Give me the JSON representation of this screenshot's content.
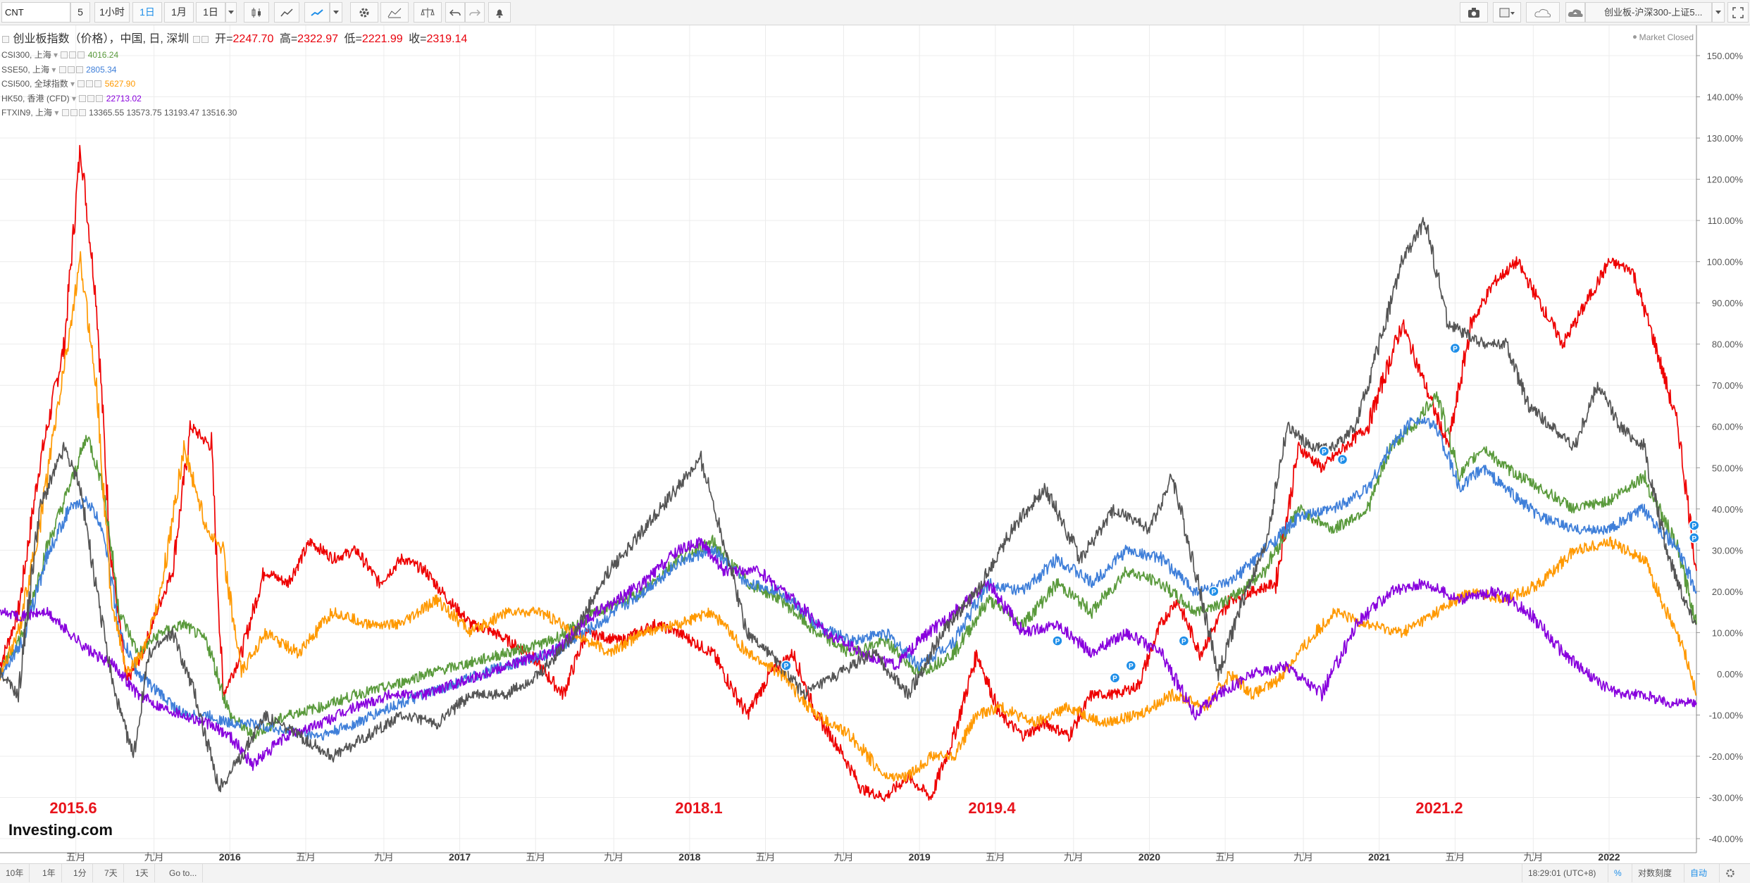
{
  "toolbar": {
    "symbol": "CNT",
    "interval_value": "5",
    "interval_1h": "1小时",
    "interval_1d": "1日",
    "interval_1m": "1月",
    "range_1d": "1日",
    "layout_name": "创业板-沪深300-上证5..."
  },
  "legend": {
    "main": {
      "name": "创业板指数（价格），中国, 日, 深圳",
      "open_label": "开=",
      "open": "2247.70",
      "high_label": "高=",
      "high": "2322.97",
      "low_label": "低=",
      "low": "2221.99",
      "close_label": "收=",
      "close": "2319.14"
    },
    "items": [
      {
        "name": "CSI300, 上海",
        "value": "4016.24",
        "color": "#5a9a3c"
      },
      {
        "name": "SSE50, 上海",
        "value": "2805.34",
        "color": "#3f7fd9"
      },
      {
        "name": "CSI500, 全球指数",
        "value": "5627.90",
        "color": "#ff9900"
      },
      {
        "name": "HK50, 香港 (CFD)",
        "value": "22713.02",
        "color": "#8800dd"
      },
      {
        "name": "FTXIN9, 上海",
        "value": "13365.55   13573.75   13193.47   13516.30",
        "color": "#555555"
      }
    ],
    "market_status": "Market Closed"
  },
  "watermark": "Investing.com",
  "annotations": [
    "2015.6",
    "2018.1",
    "2019.4",
    "2021.2"
  ],
  "bottom": {
    "ranges": [
      "10年",
      "1年",
      "1分",
      "7天",
      "1天"
    ],
    "goto": "Go to...",
    "clock": "18:29:01 (UTC+8)",
    "percent": "%",
    "log_scale": "对数刻度",
    "auto": "自动"
  },
  "chart_data": {
    "type": "line",
    "yunit": "%",
    "ylim": [
      -40,
      150
    ],
    "y_ticks": [
      "150.00%",
      "140.00%",
      "130.00%",
      "120.00%",
      "110.00%",
      "100.00%",
      "90.00%",
      "80.00%",
      "70.00%",
      "60.00%",
      "50.00%",
      "40.00%",
      "30.00%",
      "20.00%",
      "10.00%",
      "0.00%",
      "-10.00%",
      "-20.00%",
      "-30.00%",
      "-40.00%"
    ],
    "x_ticks": [
      "五月",
      "九月",
      "2016",
      "五月",
      "九月",
      "2017",
      "五月",
      "九月",
      "2018",
      "五月",
      "九月",
      "2019",
      "五月",
      "九月",
      "2020",
      "五月",
      "九月",
      "2021",
      "五月",
      "九月",
      "2022"
    ],
    "xlim": [
      2015.0,
      2022.38
    ],
    "x_tick_pos": [
      2015.33,
      2015.67,
      2016.0,
      2016.33,
      2016.67,
      2017.0,
      2017.33,
      2017.67,
      2018.0,
      2018.33,
      2018.67,
      2019.0,
      2019.33,
      2019.67,
      2020.0,
      2020.33,
      2020.67,
      2021.0,
      2021.33,
      2021.67,
      2022.0
    ],
    "series": [
      {
        "name": "创业板指数",
        "color": "#ee0000",
        "x": [
          2015.0,
          2015.08,
          2015.17,
          2015.28,
          2015.35,
          2015.42,
          2015.48,
          2015.55,
          2015.62,
          2015.68,
          2015.75,
          2015.83,
          2015.92,
          2015.97,
          2016.05,
          2016.15,
          2016.25,
          2016.35,
          2016.45,
          2016.55,
          2016.65,
          2016.75,
          2016.85,
          2016.95,
          2017.05,
          2017.15,
          2017.3,
          2017.45,
          2017.55,
          2017.7,
          2017.85,
          2017.95,
          2018.1,
          2018.25,
          2018.35,
          2018.45,
          2018.55,
          2018.65,
          2018.75,
          2018.85,
          2018.95,
          2019.05,
          2019.15,
          2019.25,
          2019.35,
          2019.45,
          2019.55,
          2019.65,
          2019.75,
          2019.85,
          2019.95,
          2020.05,
          2020.12,
          2020.22,
          2020.35,
          2020.45,
          2020.55,
          2020.65,
          2020.75,
          2020.85,
          2020.95,
          2021.1,
          2021.2,
          2021.3,
          2021.4,
          2021.5,
          2021.6,
          2021.7,
          2021.8,
          2021.9,
          2022.0,
          2022.1,
          2022.2,
          2022.3,
          2022.38
        ],
        "y": [
          2,
          15,
          50,
          80,
          128,
          90,
          30,
          -2,
          5,
          15,
          25,
          60,
          55,
          -5,
          5,
          25,
          22,
          32,
          28,
          30,
          22,
          28,
          25,
          18,
          12,
          10,
          5,
          -5,
          10,
          8,
          12,
          10,
          5,
          -10,
          0,
          5,
          -10,
          -18,
          -28,
          -30,
          -25,
          -30,
          -15,
          5,
          -10,
          -15,
          -12,
          -15,
          -5,
          -5,
          -3,
          12,
          18,
          5,
          18,
          20,
          22,
          55,
          50,
          55,
          60,
          85,
          70,
          55,
          85,
          95,
          100,
          90,
          80,
          90,
          100,
          98,
          80,
          60,
          25
        ]
      },
      {
        "name": "CSI300",
        "color": "#5a9a3c",
        "x": [
          2015.0,
          2015.1,
          2015.2,
          2015.3,
          2015.38,
          2015.45,
          2015.52,
          2015.6,
          2015.7,
          2015.8,
          2015.9,
          2016.0,
          2016.1,
          2016.25,
          2016.4,
          2016.55,
          2016.7,
          2016.85,
          2017.0,
          2017.2,
          2017.4,
          2017.6,
          2017.8,
          2017.95,
          2018.1,
          2018.25,
          2018.4,
          2018.55,
          2018.7,
          2018.85,
          2019.0,
          2019.15,
          2019.3,
          2019.45,
          2019.6,
          2019.75,
          2019.9,
          2020.05,
          2020.2,
          2020.35,
          2020.5,
          2020.65,
          2020.8,
          2020.95,
          2021.05,
          2021.15,
          2021.25,
          2021.35,
          2021.45,
          2021.55,
          2021.7,
          2021.85,
          2022.0,
          2022.15,
          2022.3,
          2022.38
        ],
        "y": [
          0,
          10,
          30,
          45,
          58,
          45,
          15,
          5,
          10,
          12,
          8,
          -10,
          -15,
          -10,
          -8,
          -5,
          -3,
          0,
          2,
          5,
          8,
          15,
          20,
          28,
          32,
          22,
          18,
          10,
          5,
          8,
          0,
          5,
          18,
          12,
          22,
          15,
          25,
          22,
          15,
          18,
          25,
          40,
          35,
          40,
          55,
          60,
          68,
          48,
          55,
          50,
          45,
          40,
          42,
          48,
          30,
          12
        ]
      },
      {
        "name": "SSE50",
        "color": "#3f7fd9",
        "x": [
          2015.0,
          2015.1,
          2015.2,
          2015.3,
          2015.38,
          2015.45,
          2015.52,
          2015.6,
          2015.7,
          2015.8,
          2015.9,
          2016.0,
          2016.1,
          2016.25,
          2016.4,
          2016.55,
          2016.7,
          2016.85,
          2017.0,
          2017.2,
          2017.4,
          2017.6,
          2017.8,
          2017.95,
          2018.1,
          2018.25,
          2018.4,
          2018.55,
          2018.7,
          2018.85,
          2019.0,
          2019.15,
          2019.3,
          2019.45,
          2019.6,
          2019.75,
          2019.9,
          2020.05,
          2020.2,
          2020.35,
          2020.5,
          2020.65,
          2020.8,
          2020.95,
          2021.05,
          2021.15,
          2021.25,
          2021.35,
          2021.45,
          2021.55,
          2021.7,
          2021.85,
          2022.0,
          2022.15,
          2022.3,
          2022.38
        ],
        "y": [
          0,
          8,
          28,
          40,
          42,
          35,
          10,
          0,
          -5,
          -10,
          -10,
          -12,
          -12,
          -14,
          -15,
          -12,
          -8,
          -5,
          -2,
          2,
          5,
          12,
          20,
          27,
          30,
          22,
          20,
          12,
          8,
          10,
          2,
          8,
          22,
          20,
          28,
          22,
          30,
          28,
          20,
          22,
          30,
          38,
          40,
          45,
          55,
          62,
          60,
          45,
          50,
          45,
          38,
          35,
          35,
          40,
          30,
          20
        ]
      },
      {
        "name": "CSI500",
        "color": "#ff9900",
        "x": [
          2015.0,
          2015.08,
          2015.17,
          2015.28,
          2015.35,
          2015.42,
          2015.48,
          2015.55,
          2015.62,
          2015.7,
          2015.8,
          2015.9,
          2015.97,
          2016.05,
          2016.15,
          2016.3,
          2016.45,
          2016.6,
          2016.75,
          2016.9,
          2017.05,
          2017.2,
          2017.35,
          2017.5,
          2017.65,
          2017.8,
          2017.95,
          2018.1,
          2018.25,
          2018.4,
          2018.55,
          2018.7,
          2018.85,
          2018.95,
          2019.05,
          2019.15,
          2019.25,
          2019.35,
          2019.5,
          2019.65,
          2019.8,
          2019.95,
          2020.1,
          2020.25,
          2020.35,
          2020.45,
          2020.55,
          2020.65,
          2020.8,
          2020.95,
          2021.1,
          2021.25,
          2021.4,
          2021.55,
          2021.7,
          2021.85,
          2022.0,
          2022.15,
          2022.25,
          2022.33,
          2022.38
        ],
        "y": [
          0,
          10,
          35,
          75,
          100,
          70,
          20,
          0,
          5,
          20,
          55,
          35,
          30,
          0,
          10,
          5,
          15,
          12,
          12,
          18,
          10,
          15,
          15,
          10,
          5,
          10,
          12,
          15,
          5,
          0,
          -10,
          -15,
          -25,
          -25,
          -20,
          -20,
          -10,
          -8,
          -12,
          -8,
          -12,
          -10,
          -5,
          -8,
          0,
          -5,
          -2,
          5,
          15,
          12,
          10,
          15,
          20,
          18,
          22,
          30,
          32,
          28,
          15,
          5,
          -5
        ]
      },
      {
        "name": "HK50",
        "color": "#8800dd",
        "x": [
          2015.0,
          2015.1,
          2015.2,
          2015.3,
          2015.4,
          2015.5,
          2015.6,
          2015.7,
          2015.8,
          2015.9,
          2016.0,
          2016.1,
          2016.25,
          2016.4,
          2016.55,
          2016.7,
          2016.85,
          2017.0,
          2017.2,
          2017.4,
          2017.6,
          2017.8,
          2017.95,
          2018.05,
          2018.15,
          2018.3,
          2018.45,
          2018.6,
          2018.75,
          2018.9,
          2019.0,
          2019.15,
          2019.3,
          2019.45,
          2019.6,
          2019.75,
          2019.9,
          2020.05,
          2020.2,
          2020.3,
          2020.45,
          2020.6,
          2020.75,
          2020.9,
          2021.05,
          2021.2,
          2021.35,
          2021.5,
          2021.65,
          2021.8,
          2021.95,
          2022.05,
          2022.15,
          2022.25,
          2022.38
        ],
        "y": [
          15,
          14,
          15,
          10,
          5,
          2,
          -5,
          -8,
          -10,
          -12,
          -15,
          -22,
          -15,
          -12,
          -8,
          -5,
          -5,
          -2,
          2,
          5,
          15,
          22,
          30,
          32,
          25,
          25,
          18,
          10,
          5,
          2,
          8,
          15,
          22,
          10,
          12,
          5,
          10,
          5,
          -10,
          -5,
          0,
          2,
          -5,
          12,
          20,
          22,
          18,
          20,
          15,
          5,
          -2,
          -5,
          -5,
          -7,
          -7
        ]
      },
      {
        "name": "FTXIN9",
        "color": "#555555",
        "x": [
          2015.0,
          2015.08,
          2015.17,
          2015.28,
          2015.35,
          2015.42,
          2015.5,
          2015.58,
          2015.65,
          2015.75,
          2015.85,
          2015.95,
          2016.05,
          2016.15,
          2016.3,
          2016.45,
          2016.6,
          2016.75,
          2016.9,
          2017.05,
          2017.2,
          2017.35,
          2017.5,
          2017.65,
          2017.8,
          2017.9,
          2018.05,
          2018.15,
          2018.25,
          2018.35,
          2018.5,
          2018.65,
          2018.8,
          2018.95,
          2019.1,
          2019.25,
          2019.4,
          2019.55,
          2019.7,
          2019.85,
          2020.0,
          2020.1,
          2020.2,
          2020.3,
          2020.42,
          2020.5,
          2020.6,
          2020.7,
          2020.8,
          2020.9,
          2021.0,
          2021.1,
          2021.2,
          2021.3,
          2021.45,
          2021.55,
          2021.65,
          2021.75,
          2021.85,
          2021.95,
          2022.05,
          2022.15,
          2022.25,
          2022.35,
          2022.38
        ],
        "y": [
          0,
          -5,
          40,
          55,
          45,
          20,
          -5,
          -20,
          5,
          10,
          -5,
          -28,
          -20,
          -10,
          -15,
          -20,
          -15,
          -10,
          -12,
          -5,
          -5,
          0,
          10,
          25,
          35,
          42,
          52,
          32,
          10,
          5,
          -5,
          0,
          5,
          -5,
          10,
          20,
          35,
          45,
          28,
          40,
          35,
          48,
          25,
          0,
          20,
          30,
          60,
          55,
          55,
          60,
          80,
          100,
          110,
          85,
          80,
          80,
          65,
          60,
          55,
          70,
          60,
          55,
          30,
          15,
          12
        ]
      }
    ]
  }
}
